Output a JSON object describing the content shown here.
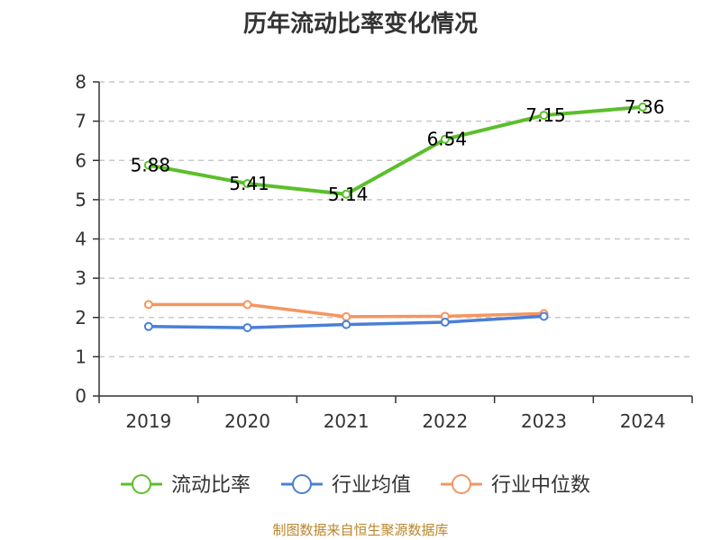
{
  "chart_data": {
    "type": "line",
    "title": "历年流动比率变化情况",
    "categories": [
      "2019",
      "2020",
      "2021",
      "2022",
      "2023",
      "2024"
    ],
    "ylim": [
      0,
      8
    ],
    "yticks": [
      0,
      1,
      2,
      3,
      4,
      5,
      6,
      7,
      8
    ],
    "grid": true,
    "legend_position": "bottom",
    "series": [
      {
        "name": "流动比率",
        "color": "#5bbf2a",
        "values": [
          5.88,
          5.41,
          5.14,
          6.54,
          7.15,
          7.36
        ],
        "labels": [
          "5.88",
          "5.41",
          "5.14",
          "6.54",
          "7.15",
          "7.36"
        ]
      },
      {
        "name": "行业均值",
        "color": "#4a7fd6",
        "values": [
          1.77,
          1.74,
          1.82,
          1.88,
          2.03,
          null
        ]
      },
      {
        "name": "行业中位数",
        "color": "#f59560",
        "values": [
          2.33,
          2.33,
          2.02,
          2.03,
          2.1,
          null
        ]
      }
    ]
  },
  "footer": {
    "source": "制图数据来自恒生聚源数据库"
  }
}
